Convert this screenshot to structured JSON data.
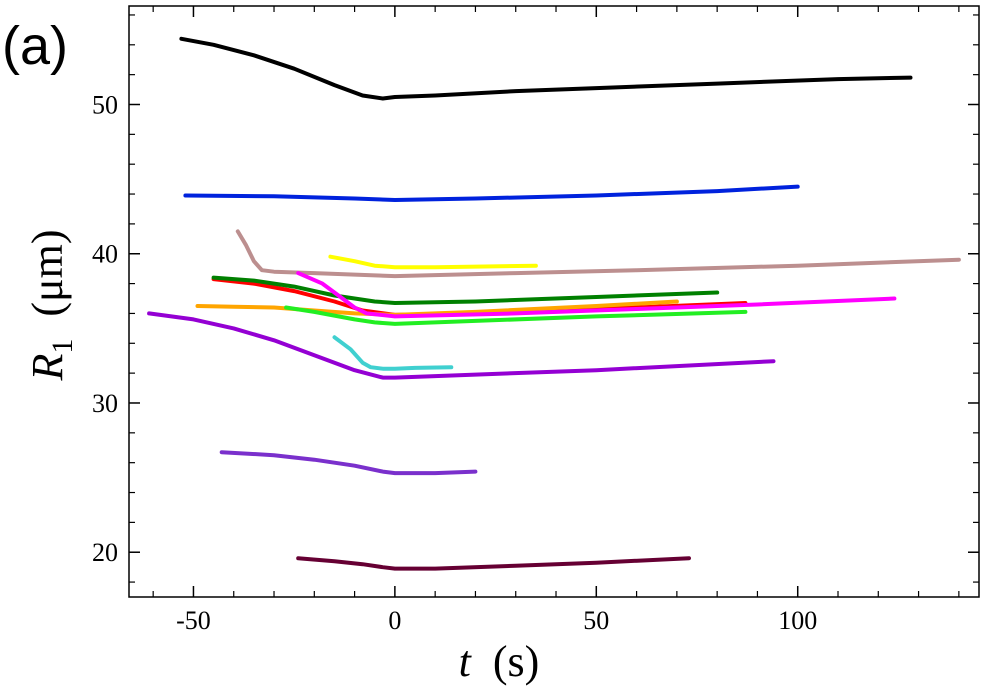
{
  "panel_label": "(a)",
  "chart_data": {
    "type": "line",
    "title": "",
    "xlabel_symbol": "t",
    "xlabel_unit": "(s)",
    "ylabel_symbol": "R",
    "ylabel_subscript": "1",
    "ylabel_unit": "(μm)",
    "xlim": [
      -66,
      145
    ],
    "ylim": [
      17,
      56.6
    ],
    "xticks": [
      -50,
      0,
      50,
      100
    ],
    "yticks": [
      20,
      30,
      40,
      50
    ],
    "xtick_labels": [
      "-50",
      "0",
      "50",
      "100"
    ],
    "ytick_labels": [
      "20",
      "30",
      "40",
      "50"
    ],
    "grid": false,
    "legend": "none",
    "series": [
      {
        "name": "black",
        "color": "#000000",
        "x": [
          -53,
          -45,
          -35,
          -25,
          -15,
          -8,
          -3,
          0,
          10,
          30,
          50,
          80,
          110,
          128
        ],
        "y": [
          54.4,
          54.0,
          53.3,
          52.4,
          51.3,
          50.6,
          50.4,
          50.5,
          50.6,
          50.9,
          51.1,
          51.4,
          51.7,
          51.8
        ]
      },
      {
        "name": "blue",
        "color": "#0022dd",
        "x": [
          -52,
          -30,
          -10,
          0,
          20,
          50,
          80,
          100
        ],
        "y": [
          43.9,
          43.85,
          43.7,
          43.6,
          43.7,
          43.9,
          44.2,
          44.5
        ]
      },
      {
        "name": "rosy-brown",
        "color": "#bc8f8f",
        "x": [
          -39,
          -37,
          -35,
          -33,
          -30,
          -20,
          -10,
          0,
          30,
          60,
          100,
          140
        ],
        "y": [
          41.5,
          40.6,
          39.5,
          38.9,
          38.8,
          38.7,
          38.6,
          38.5,
          38.7,
          38.9,
          39.2,
          39.6
        ]
      },
      {
        "name": "yellow",
        "color": "#ffff00",
        "x": [
          -16,
          -10,
          -5,
          0,
          10,
          35
        ],
        "y": [
          39.8,
          39.5,
          39.2,
          39.1,
          39.1,
          39.2
        ]
      },
      {
        "name": "red",
        "color": "#ff0000",
        "x": [
          -45,
          -35,
          -25,
          -15,
          -8,
          0,
          20,
          40,
          60,
          87
        ],
        "y": [
          38.3,
          38.0,
          37.5,
          36.8,
          36.2,
          35.9,
          36.0,
          36.2,
          36.4,
          36.7
        ]
      },
      {
        "name": "green",
        "color": "#008000",
        "x": [
          -45,
          -35,
          -25,
          -15,
          -5,
          0,
          20,
          50,
          80
        ],
        "y": [
          38.4,
          38.2,
          37.8,
          37.2,
          36.8,
          36.7,
          36.8,
          37.1,
          37.4
        ]
      },
      {
        "name": "orange",
        "color": "#ffa500",
        "x": [
          -49,
          -40,
          -30,
          -20,
          -10,
          0,
          20,
          50,
          70
        ],
        "y": [
          36.5,
          36.45,
          36.4,
          36.2,
          36.0,
          35.9,
          36.1,
          36.5,
          36.8
        ]
      },
      {
        "name": "magenta",
        "color": "#ff00ff",
        "x": [
          -24,
          -18,
          -14,
          -10,
          -7,
          0,
          30,
          60,
          90,
          124
        ],
        "y": [
          38.7,
          38.0,
          37.2,
          36.4,
          36.0,
          35.8,
          36.0,
          36.3,
          36.6,
          37.0
        ]
      },
      {
        "name": "light-green",
        "color": "#22ee22",
        "x": [
          -27,
          -20,
          -10,
          -5,
          0,
          20,
          50,
          87
        ],
        "y": [
          36.4,
          36.1,
          35.6,
          35.4,
          35.3,
          35.5,
          35.8,
          36.1
        ]
      },
      {
        "name": "turquoise",
        "color": "#40d0d0",
        "x": [
          -15,
          -11,
          -8,
          -6,
          -3,
          0,
          5,
          14
        ],
        "y": [
          34.4,
          33.6,
          32.7,
          32.4,
          32.3,
          32.3,
          32.35,
          32.4
        ]
      },
      {
        "name": "dark-violet",
        "color": "#9400d3",
        "x": [
          -61,
          -50,
          -40,
          -30,
          -20,
          -10,
          -3,
          0,
          20,
          50,
          94
        ],
        "y": [
          36.0,
          35.6,
          35.0,
          34.2,
          33.2,
          32.2,
          31.7,
          31.7,
          31.9,
          32.2,
          32.8
        ]
      },
      {
        "name": "medium-purple",
        "color": "#7a30cc",
        "x": [
          -43,
          -30,
          -20,
          -10,
          -3,
          0,
          10,
          20
        ],
        "y": [
          26.7,
          26.5,
          26.2,
          25.8,
          25.4,
          25.3,
          25.3,
          25.4
        ]
      },
      {
        "name": "maroon",
        "color": "#660033",
        "x": [
          -24,
          -15,
          -8,
          -3,
          0,
          10,
          30,
          50,
          73
        ],
        "y": [
          19.6,
          19.4,
          19.2,
          19.0,
          18.9,
          18.9,
          19.1,
          19.3,
          19.6
        ]
      }
    ]
  }
}
